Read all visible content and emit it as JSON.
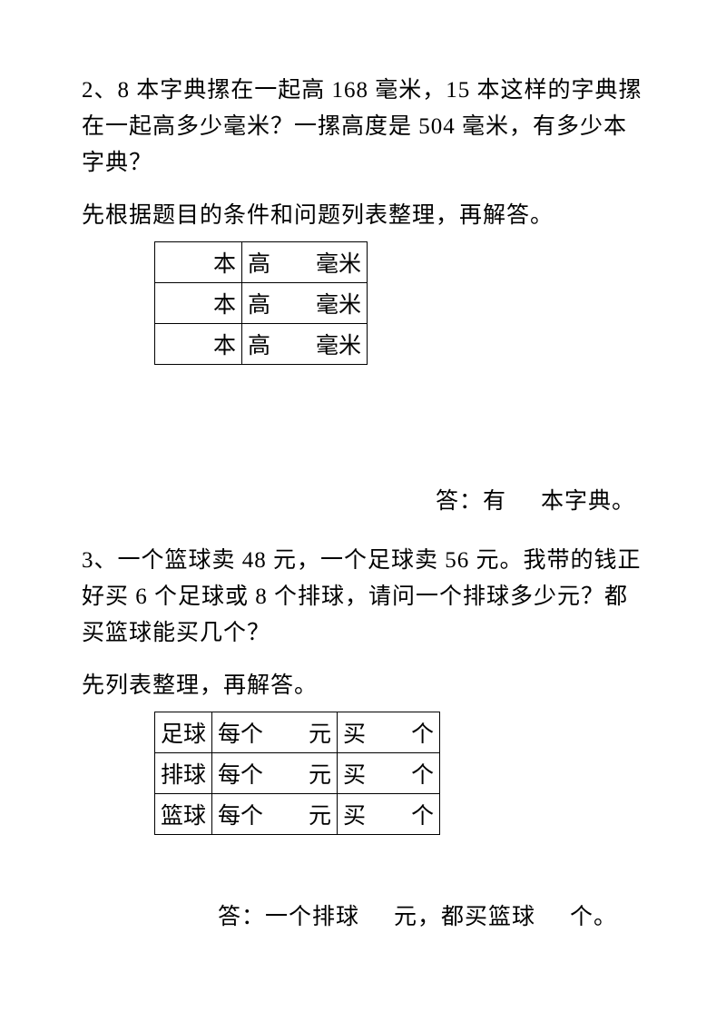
{
  "problem2": {
    "text": "2、8 本字典摞在一起高 168 毫米，15 本这样的字典摞在一起高多少毫米？一摞高度是 504 毫米，有多少本字典？",
    "instruction": "先根据题目的条件和问题列表整理，再解答。",
    "table": {
      "rows": [
        {
          "c1a": "本",
          "c2a": "高",
          "c2b": "毫米"
        },
        {
          "c1a": "本",
          "c2a": "高",
          "c2b": "毫米"
        },
        {
          "c1a": "本",
          "c2a": "高",
          "c2b": "毫米"
        }
      ]
    },
    "answer_prefix": "答：有",
    "answer_suffix": "本字典。"
  },
  "problem3": {
    "text": "3、一个篮球卖 48 元，一个足球卖 56 元。我带的钱正好买 6 个足球或 8 个排球，请问一个排球多少元？都买篮球能买几个？",
    "instruction": "先列表整理，再解答。",
    "table": {
      "rows": [
        {
          "c1": "足球",
          "c2a": "每个",
          "c2b": "元",
          "c3a": "买",
          "c3b": "个"
        },
        {
          "c1": "排球",
          "c2a": "每个",
          "c2b": "元",
          "c3a": "买",
          "c3b": "个"
        },
        {
          "c1": "篮球",
          "c2a": "每个",
          "c2b": "元",
          "c3a": "买",
          "c3b": "个"
        }
      ]
    },
    "answer_p1": "答：一个排球",
    "answer_p2": "元，都买篮球",
    "answer_p3": "个。"
  },
  "style": {
    "font_family": "SimSun",
    "text_color": "#000000",
    "background_color": "#ffffff",
    "border_color": "#000000",
    "body_fontsize": 25
  }
}
